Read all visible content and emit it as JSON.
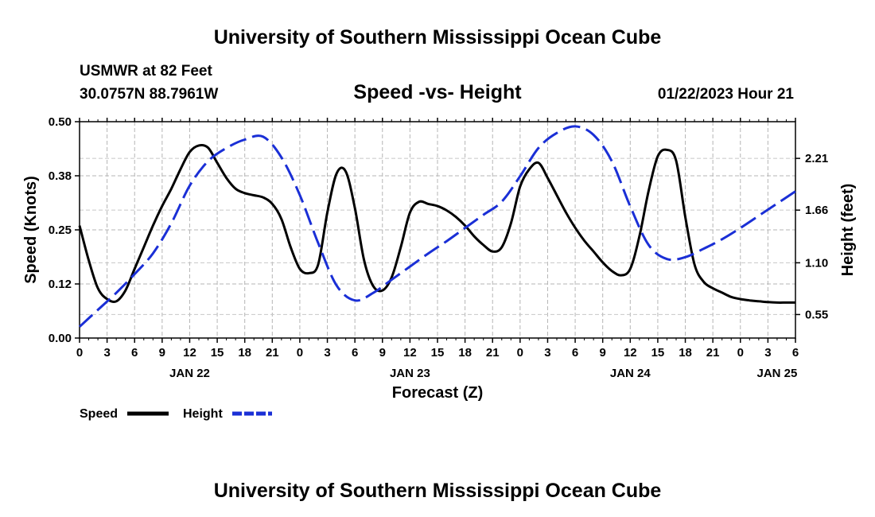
{
  "page": {
    "title_top": "University of Southern Mississippi Ocean Cube",
    "title_bottom": "University of Southern Mississippi Ocean Cube",
    "station": "USMWR at 82 Feet",
    "coords": "30.0757N  88.7961W",
    "datetime": "01/22/2023 Hour 21"
  },
  "chart_data": {
    "type": "line",
    "title": "Speed -vs- Height",
    "xlabel": "Forecast (Z)",
    "ylabel": "Speed (Knots)",
    "ylabel_right": "Height (feet)",
    "x_range_hours": [
      0,
      78
    ],
    "ylim": [
      0,
      0.5
    ],
    "y_ticks": [
      "0.00",
      "0.12",
      "0.25",
      "0.38",
      "0.50"
    ],
    "y_tick_values": [
      0,
      0.125,
      0.25,
      0.375,
      0.5
    ],
    "y2lim": [
      0.3,
      2.6
    ],
    "y2_ticks": [
      "0.55",
      "1.10",
      "1.66",
      "2.21"
    ],
    "y2_tick_values": [
      0.55,
      1.1,
      1.66,
      2.21
    ],
    "x_ticks": [
      "0",
      "3",
      "6",
      "9",
      "12",
      "15",
      "18",
      "21",
      "0",
      "3",
      "6",
      "9",
      "12",
      "15",
      "18",
      "21",
      "0",
      "3",
      "6",
      "9",
      "12",
      "15",
      "18",
      "21",
      "0",
      "3",
      "6"
    ],
    "day_labels": [
      {
        "label": "JAN 22",
        "hour": 12
      },
      {
        "label": "JAN 23",
        "hour": 36
      },
      {
        "label": "JAN 24",
        "hour": 60
      },
      {
        "label": "JAN 25",
        "hour": 76
      }
    ],
    "grid": true,
    "series": [
      {
        "name": "Speed",
        "color": "#000000",
        "axis": "left",
        "style": "solid",
        "x": [
          0,
          1,
          2,
          3,
          4,
          5,
          6,
          7,
          8,
          9,
          10,
          11,
          12,
          13,
          14,
          15,
          16,
          17,
          18,
          19,
          20,
          21,
          22,
          23,
          24,
          25,
          26,
          27,
          28,
          29,
          30,
          31,
          32,
          33,
          34,
          35,
          36,
          37,
          38,
          39,
          40,
          41,
          42,
          43,
          44,
          45,
          46,
          47,
          48,
          49,
          50,
          51,
          52,
          53,
          54,
          55,
          56,
          57,
          58,
          59,
          60,
          61,
          62,
          63,
          64,
          65,
          66,
          67,
          68,
          69,
          70,
          71,
          72,
          73,
          74,
          75,
          76,
          77,
          78
        ],
        "values": [
          0.26,
          0.18,
          0.115,
          0.09,
          0.085,
          0.11,
          0.16,
          0.21,
          0.26,
          0.305,
          0.345,
          0.39,
          0.43,
          0.445,
          0.44,
          0.405,
          0.37,
          0.345,
          0.335,
          0.33,
          0.325,
          0.31,
          0.275,
          0.21,
          0.16,
          0.15,
          0.17,
          0.29,
          0.38,
          0.385,
          0.3,
          0.18,
          0.12,
          0.11,
          0.14,
          0.21,
          0.29,
          0.315,
          0.31,
          0.305,
          0.295,
          0.28,
          0.26,
          0.235,
          0.215,
          0.2,
          0.21,
          0.265,
          0.35,
          0.39,
          0.405,
          0.37,
          0.33,
          0.29,
          0.255,
          0.225,
          0.2,
          0.175,
          0.155,
          0.145,
          0.16,
          0.235,
          0.34,
          0.42,
          0.435,
          0.41,
          0.28,
          0.17,
          0.13,
          0.115,
          0.105,
          0.095,
          0.09,
          0.087,
          0.085,
          0.083,
          0.082,
          0.082,
          0.082
        ]
      },
      {
        "name": "Height",
        "color": "#1a2fd6",
        "axis": "right",
        "style": "dashed",
        "x": [
          0,
          2,
          4,
          6,
          8,
          10,
          12,
          14,
          16,
          18,
          20,
          22,
          24,
          26,
          28,
          30,
          32,
          34,
          36,
          38,
          40,
          42,
          44,
          46,
          48,
          50,
          52,
          54,
          56,
          58,
          60,
          62,
          64,
          66,
          68,
          70,
          72,
          74,
          76,
          78
        ],
        "values": [
          0.42,
          0.6,
          0.78,
          0.98,
          1.2,
          1.52,
          1.92,
          2.18,
          2.32,
          2.41,
          2.44,
          2.22,
          1.82,
          1.31,
          0.86,
          0.7,
          0.78,
          0.92,
          1.06,
          1.2,
          1.33,
          1.47,
          1.61,
          1.75,
          2.02,
          2.32,
          2.48,
          2.55,
          2.46,
          2.18,
          1.7,
          1.29,
          1.14,
          1.16,
          1.25,
          1.35,
          1.47,
          1.6,
          1.73,
          1.86
        ]
      }
    ],
    "legend": [
      {
        "label": "Speed",
        "color": "#000000",
        "style": "solid"
      },
      {
        "label": "Height",
        "color": "#1a2fd6",
        "style": "dashed"
      }
    ]
  }
}
